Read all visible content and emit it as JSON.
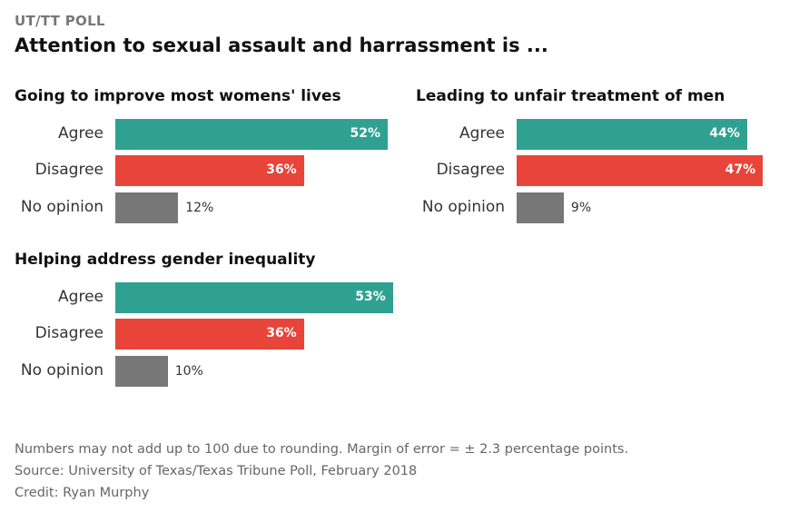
{
  "kicker": "UT/TT POLL",
  "headline": "Attention to sexual assault and harrassment is ...",
  "colors": {
    "agree": "#2fa190",
    "disagree": "#e8443a",
    "no_opinion": "#777777"
  },
  "chart_data": [
    {
      "type": "bar",
      "title": "Going to improve most womens' lives",
      "categories": [
        "Agree",
        "Disagree",
        "No opinion"
      ],
      "values": [
        52,
        36,
        12
      ],
      "labels": [
        "52%",
        "36%",
        "12%"
      ],
      "xlim": [
        0,
        55
      ]
    },
    {
      "type": "bar",
      "title": "Leading to unfair treatment of men",
      "categories": [
        "Agree",
        "Disagree",
        "No opinion"
      ],
      "values": [
        44,
        47,
        9
      ],
      "labels": [
        "44%",
        "47%",
        "9%"
      ],
      "xlim": [
        0,
        55
      ]
    },
    {
      "type": "bar",
      "title": "Helping address gender inequality",
      "categories": [
        "Agree",
        "Disagree",
        "No opinion"
      ],
      "values": [
        53,
        36,
        10
      ],
      "labels": [
        "53%",
        "36%",
        "10%"
      ],
      "xlim": [
        0,
        55
      ]
    }
  ],
  "notes": {
    "rounding": "Numbers may not add up to 100 due to rounding. Margin of error = ± 2.3 percentage points.",
    "source": "Source: University of Texas/Texas Tribune Poll, February 2018",
    "credit": "Credit: Ryan Murphy"
  }
}
